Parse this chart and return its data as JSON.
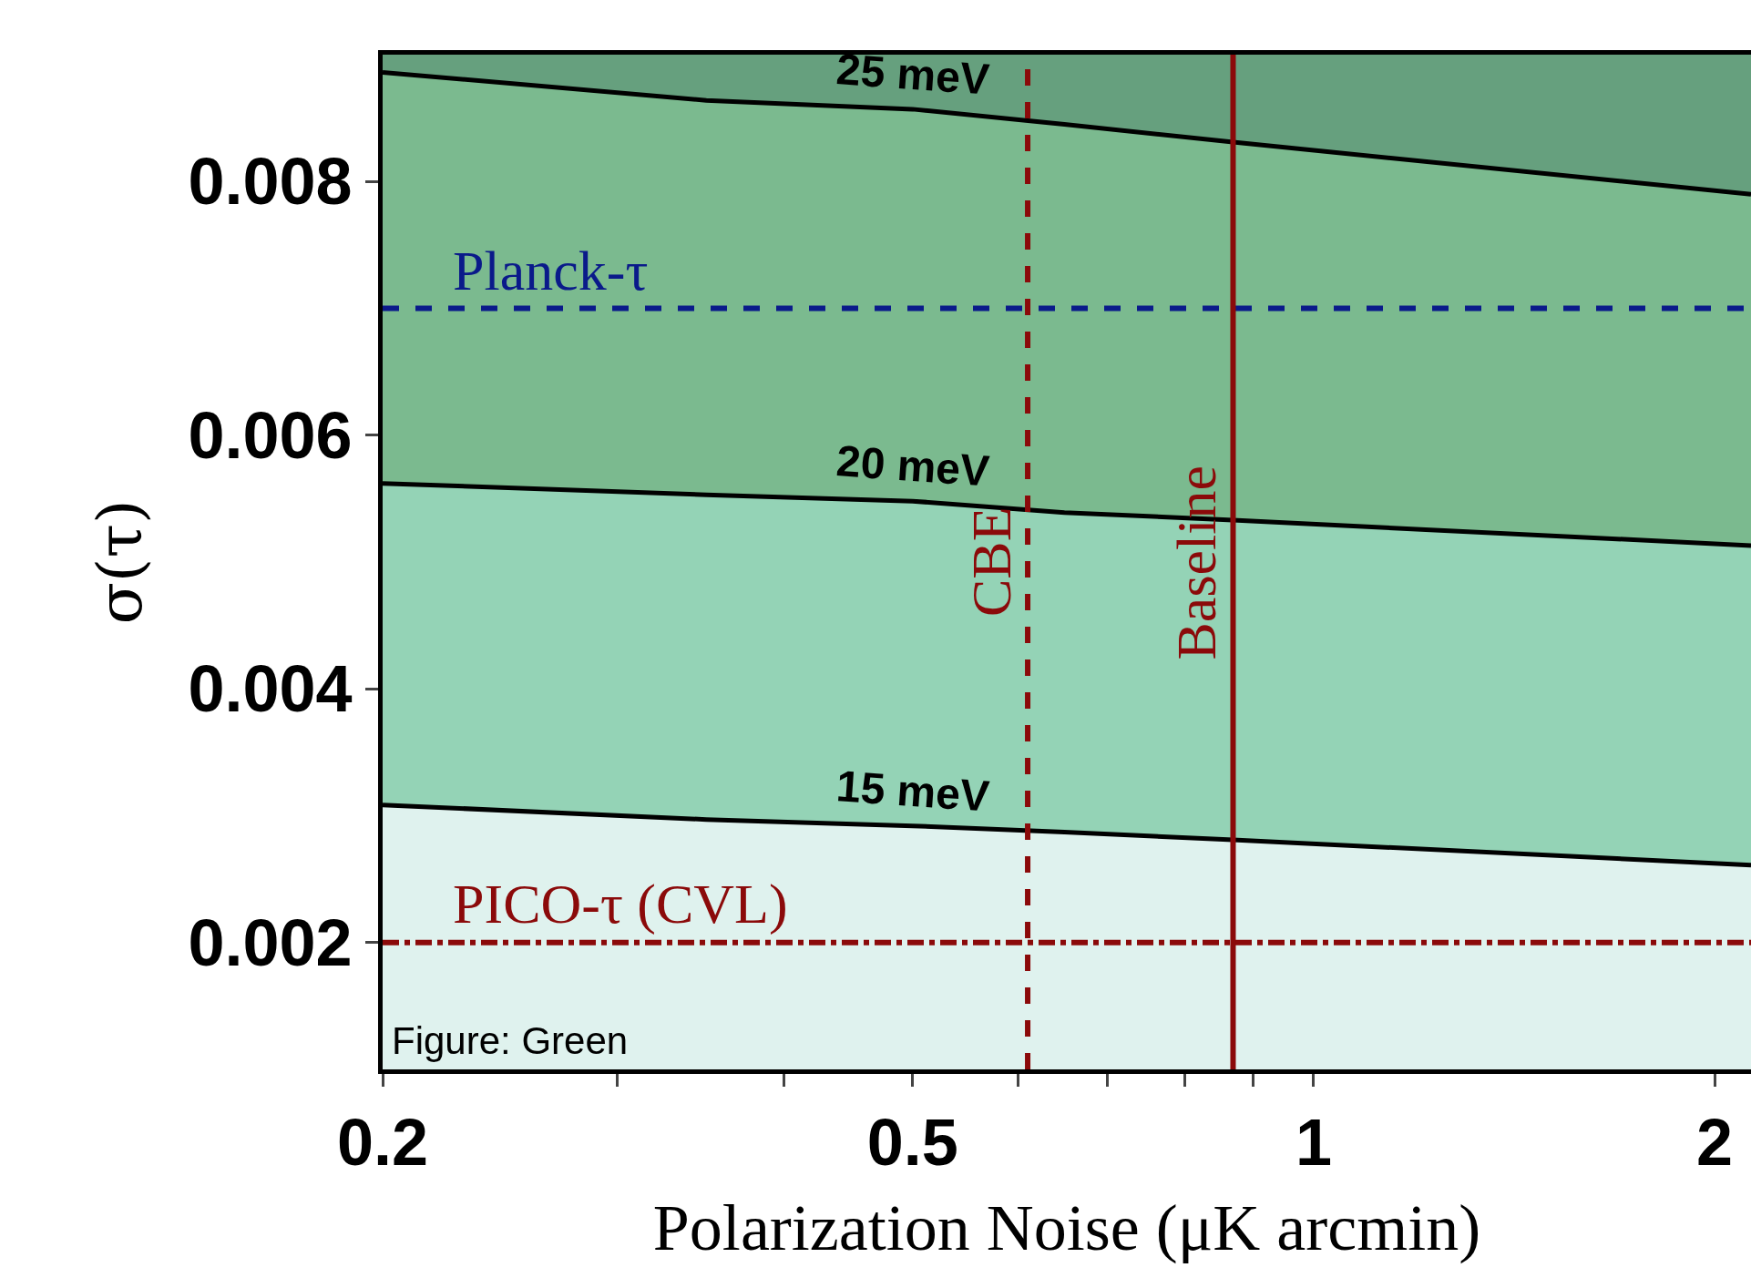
{
  "chart_data": {
    "type": "area",
    "xlabel": "Polarization Noise (μK arcmin)",
    "ylabel": "σ(τ)",
    "log": "x",
    "xlim": [
      0.2,
      2.13
    ],
    "ylim": [
      0.001,
      0.009
    ],
    "xticks": [
      0.2,
      {
        "value": 0.3,
        "label": null
      },
      {
        "value": 0.4,
        "label": null
      },
      0.5,
      {
        "value": 0.6,
        "label": null
      },
      {
        "value": 0.7,
        "label": null
      },
      {
        "value": 0.8,
        "label": null
      },
      {
        "value": 0.9,
        "label": null
      },
      1,
      2
    ],
    "yticks": [
      0.002,
      0.004,
      0.006,
      0.008
    ],
    "x": [
      0.2,
      0.35,
      0.5,
      0.65,
      0.87,
      2.13
    ],
    "series": [
      {
        "name": "25 meV",
        "color": "#7bba8f",
        "values": [
          0.00886,
          0.00864,
          0.00857,
          0.00845,
          0.00831,
          0.0079
        ]
      },
      {
        "name": "20 meV",
        "color": "#94d3b6",
        "values": [
          0.00562,
          0.00553,
          0.00548,
          0.00539,
          0.00533,
          0.00513
        ]
      },
      {
        "name": "15 meV",
        "color": "#dff2ee",
        "values": [
          0.003085,
          0.00297,
          0.00292,
          0.00287,
          0.00281,
          0.00261
        ]
      }
    ],
    "ref_lines": [
      {
        "axis": "y",
        "value": 0.007,
        "label": "Planck-τ",
        "color": "#0a1a8a",
        "line_style": "dashed"
      },
      {
        "axis": "y",
        "value": 0.002,
        "label": "PICO-τ (CVL)",
        "color": "#8b0a0a",
        "line_style": "dashdot"
      },
      {
        "axis": "x",
        "value": 0.61,
        "label": "CBE",
        "color": "#8b0a0a",
        "line_style": "dashed"
      },
      {
        "axis": "x",
        "value": 0.87,
        "label": "Baseline",
        "color": "#8b0a0a",
        "line_style": "solid"
      }
    ],
    "bands": [
      {
        "axis": "y",
        "from": 0.0079,
        "to": 0.009,
        "color": "#66a07e"
      }
    ],
    "annotations": [
      "Figure: Green"
    ]
  }
}
